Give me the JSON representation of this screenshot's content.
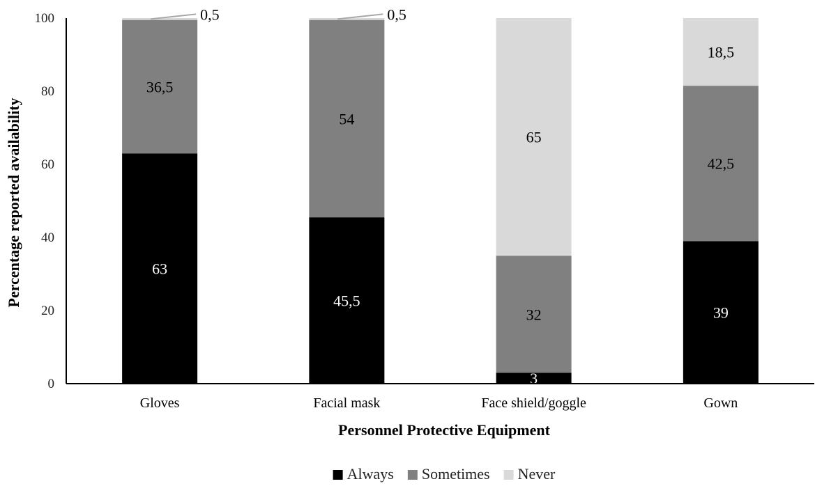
{
  "chart_data": {
    "type": "bar",
    "stacked": true,
    "categories": [
      "Gloves",
      "Facial mask",
      "Face shield/goggle",
      "Gown"
    ],
    "series": [
      {
        "name": "Always",
        "color": "#000000",
        "label_color": "#ffffff",
        "values": [
          63,
          45.5,
          3,
          39
        ],
        "labels": [
          "63",
          "45,5",
          "3",
          "39"
        ]
      },
      {
        "name": "Sometimes",
        "color": "#808080",
        "label_color": "#000000",
        "values": [
          36.5,
          54,
          32,
          42.5
        ],
        "labels": [
          "36,5",
          "54",
          "32",
          "42,5"
        ]
      },
      {
        "name": "Never",
        "color": "#d9d9d9",
        "label_color": "#000000",
        "values": [
          0.5,
          0.5,
          65,
          18.5
        ],
        "labels": [
          "0,5",
          "0,5",
          "65",
          "18,5"
        ]
      }
    ],
    "xlabel": "Personnel Protective Equipment",
    "ylabel": "Percentage reported availability",
    "ylim": [
      0,
      100
    ],
    "yticks": [
      0,
      20,
      40,
      60,
      80,
      100
    ],
    "grid": false,
    "legend_position": "bottom"
  }
}
